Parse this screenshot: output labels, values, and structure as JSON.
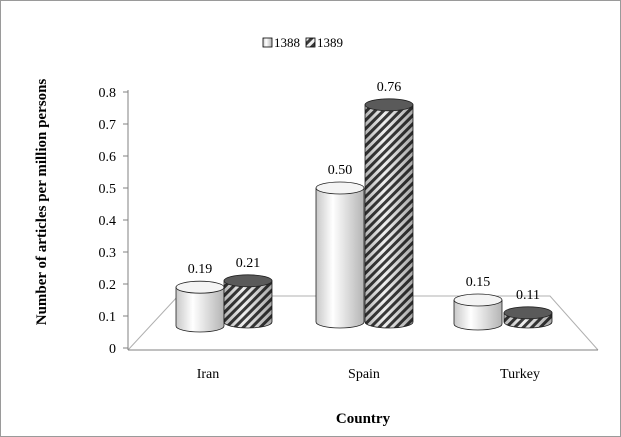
{
  "chart_data": {
    "type": "bar",
    "categories": [
      "Iran",
      "Spain",
      "Turkey"
    ],
    "series": [
      {
        "name": "1388",
        "values": [
          0.19,
          0.5,
          0.15
        ],
        "labels": [
          "0.19",
          "0.50",
          "0.15"
        ]
      },
      {
        "name": "1389",
        "values": [
          0.21,
          0.76,
          0.11
        ],
        "labels": [
          "0.21",
          "0.76",
          "0.11"
        ]
      }
    ],
    "xlabel": "Country",
    "ylabel": "Number  of articles per million persons",
    "ylim": [
      0,
      0.8
    ],
    "yticks": [
      "0",
      "0.1",
      "0.2",
      "0.3",
      "0.4",
      "0.5",
      "0.6",
      "0.7",
      "0.8"
    ],
    "legend_position": "top-center",
    "grid": false,
    "colors": {
      "1388": "#f2f2f2",
      "1389": "#4d4d4d"
    }
  }
}
